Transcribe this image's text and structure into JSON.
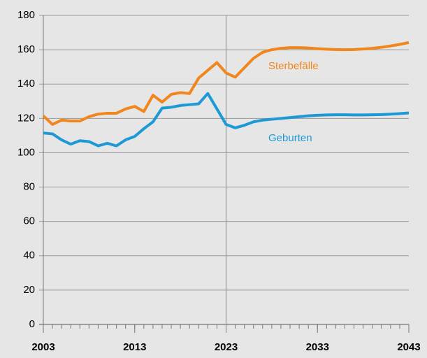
{
  "chart_data": {
    "type": "line",
    "x": [
      2003,
      2004,
      2005,
      2006,
      2007,
      2008,
      2009,
      2010,
      2011,
      2012,
      2013,
      2014,
      2015,
      2016,
      2017,
      2018,
      2019,
      2020,
      2021,
      2022,
      2023,
      2024,
      2025,
      2026,
      2027,
      2028,
      2029,
      2030,
      2031,
      2032,
      2033,
      2034,
      2035,
      2036,
      2037,
      2038,
      2039,
      2040,
      2041,
      2042,
      2043
    ],
    "series": [
      {
        "name": "Sterbefälle",
        "color": "#f0861c",
        "values": [
          121.5,
          116.5,
          119,
          118.5,
          118.5,
          121,
          122.5,
          123,
          123,
          125.5,
          127,
          124,
          133.5,
          129.5,
          134,
          135,
          134.5,
          143.5,
          148,
          152.5,
          146.5,
          144,
          149.5,
          155,
          158.5,
          160,
          160.8,
          161.2,
          161.2,
          161,
          160.6,
          160.3,
          160.1,
          160,
          160.1,
          160.4,
          160.8,
          161.4,
          162.2,
          163.1,
          164.2
        ]
      },
      {
        "name": "Geburten",
        "color": "#1d9ad6",
        "values": [
          111.5,
          111,
          107.5,
          105,
          107,
          106.5,
          104,
          105.5,
          104,
          107.5,
          109.5,
          114,
          118,
          126,
          126.5,
          127.5,
          128,
          128.5,
          134.5,
          125.5,
          116.5,
          114.5,
          116,
          118,
          119,
          119.5,
          120,
          120.5,
          121,
          121.5,
          121.8,
          122,
          122.1,
          122.1,
          122,
          122,
          122.1,
          122.2,
          122.5,
          122.8,
          123.2
        ]
      }
    ],
    "xlim": [
      2003,
      2043
    ],
    "xticks": [
      2003,
      2013,
      2023,
      2033,
      2043
    ],
    "ylim": [
      0,
      180
    ],
    "yticks": [
      0,
      20,
      40,
      60,
      80,
      100,
      120,
      140,
      160,
      180
    ],
    "vline": 2023,
    "grid": true
  }
}
